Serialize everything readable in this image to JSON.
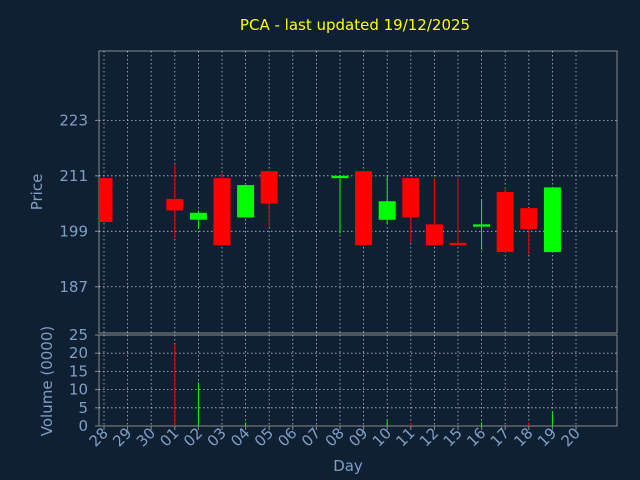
{
  "chart_data": {
    "type": "candlestick",
    "title": "PCA - last updated 19/12/2025",
    "price_axis": {
      "label": "Price",
      "ylim": [
        177,
        238
      ],
      "ticks": [
        187,
        199,
        211,
        223
      ]
    },
    "volume_axis": {
      "label": "Volume (0000)",
      "ylim": [
        0,
        25
      ],
      "ticks": [
        0,
        5,
        10,
        15,
        20,
        25
      ]
    },
    "xlabel": "Day",
    "day_labels": [
      "28",
      "29",
      "30",
      "01",
      "02",
      "03",
      "04",
      "05",
      "06",
      "07",
      "08",
      "09",
      "10",
      "11",
      "12",
      "15",
      "16",
      "17",
      "18",
      "19",
      "20"
    ],
    "grid": true,
    "colors": {
      "up": "#00ff00",
      "down": "#ff0000",
      "grid": "#ffffff",
      "background": "#0f2033",
      "text": "#7f9fc6",
      "title": "#ffff00"
    },
    "candles": [
      {
        "day": "28",
        "open": 210.5,
        "high": 210.5,
        "low": 201.0,
        "close": 201.0
      },
      {
        "day": "01",
        "open": 206.0,
        "high": 213.5,
        "low": 197.5,
        "close": 203.5
      },
      {
        "day": "02",
        "open": 201.5,
        "high": 203.5,
        "low": 199.5,
        "close": 203.0
      },
      {
        "day": "03",
        "open": 210.5,
        "high": 211.5,
        "low": 196.0,
        "close": 196.0
      },
      {
        "day": "04",
        "open": 202.0,
        "high": 209.0,
        "low": 202.0,
        "close": 209.0
      },
      {
        "day": "05",
        "open": 212.0,
        "high": 212.0,
        "low": 200.0,
        "close": 205.0
      },
      {
        "day": "08",
        "open": 210.5,
        "high": 211.0,
        "low": 198.5,
        "close": 211.0
      },
      {
        "day": "09",
        "open": 212.0,
        "high": 212.0,
        "low": 196.0,
        "close": 196.0
      },
      {
        "day": "10",
        "open": 201.5,
        "high": 211.0,
        "low": 200.5,
        "close": 205.5
      },
      {
        "day": "11",
        "open": 210.5,
        "high": 210.5,
        "low": 196.5,
        "close": 202.0
      },
      {
        "day": "12",
        "open": 200.5,
        "high": 210.5,
        "low": 196.0,
        "close": 196.0
      },
      {
        "day": "15",
        "open": 196.5,
        "high": 210.5,
        "low": 196.0,
        "close": 196.0
      },
      {
        "day": "16",
        "open": 200.0,
        "high": 206.0,
        "low": 195.0,
        "close": 200.5
      },
      {
        "day": "17",
        "open": 207.5,
        "high": 208.5,
        "low": 194.5,
        "close": 194.5
      },
      {
        "day": "18",
        "open": 204.0,
        "high": 204.0,
        "low": 194.0,
        "close": 199.5
      },
      {
        "day": "19",
        "open": 194.5,
        "high": 208.5,
        "low": 194.5,
        "close": 208.5
      }
    ],
    "volume": [
      {
        "day": "01",
        "value": 22.5,
        "color": "down"
      },
      {
        "day": "02",
        "value": 12.0,
        "color": "up"
      },
      {
        "day": "04",
        "value": 1.0,
        "color": "up"
      },
      {
        "day": "10",
        "value": 1.5,
        "color": "up"
      },
      {
        "day": "11",
        "value": 0.8,
        "color": "down"
      },
      {
        "day": "16",
        "value": 1.0,
        "color": "up"
      },
      {
        "day": "18",
        "value": 1.0,
        "color": "down"
      },
      {
        "day": "19",
        "value": 4.0,
        "color": "up"
      }
    ]
  }
}
